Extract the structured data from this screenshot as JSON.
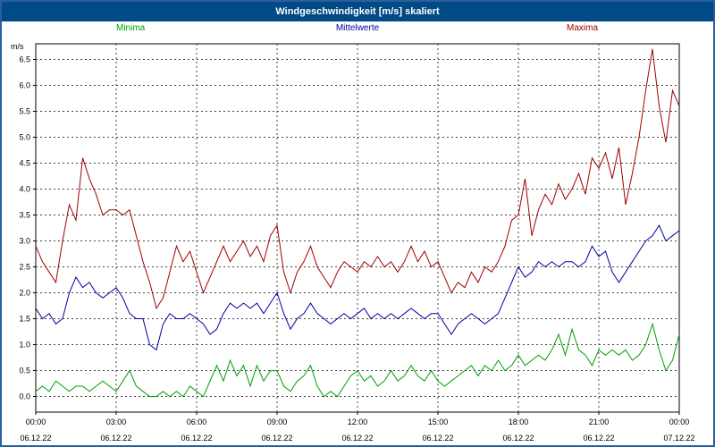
{
  "window": {
    "title": "Windgeschwindigkeit [m/s] skaliert"
  },
  "chart_data": {
    "type": "line",
    "title": "Windgeschwindigkeit [m/s] skaliert",
    "ylabel": "m/s",
    "ylim": [
      0,
      6.5
    ],
    "grid": "dashed",
    "legend_position": "top",
    "x_tick_labels": [
      "00:00",
      "03:00",
      "06:00",
      "09:00",
      "12:00",
      "15:00",
      "18:00",
      "21:00",
      "00:00"
    ],
    "x_date_labels": [
      "06.12.22",
      "06.12.22",
      "06.12.22",
      "06.12.22",
      "06.12.22",
      "06.12.22",
      "06.12.22",
      "06.12.22",
      "07.12.22"
    ],
    "y_tick_labels": [
      "0.0",
      "0.5",
      "1.0",
      "1.5",
      "2.0",
      "2.5",
      "3.0",
      "3.5",
      "4.0",
      "4.5",
      "5.0",
      "5.5",
      "6.0",
      "6.5"
    ],
    "points_per_hour": 4,
    "series": [
      {
        "name": "Minima",
        "color": "#00a000",
        "values": [
          0.1,
          0.2,
          0.1,
          0.3,
          0.2,
          0.1,
          0.2,
          0.2,
          0.1,
          0.2,
          0.3,
          0.2,
          0.1,
          0.3,
          0.5,
          0.2,
          0.1,
          0.0,
          0.0,
          0.1,
          0.0,
          0.1,
          0.0,
          0.2,
          0.1,
          0.0,
          0.3,
          0.6,
          0.3,
          0.7,
          0.4,
          0.6,
          0.2,
          0.6,
          0.3,
          0.5,
          0.5,
          0.2,
          0.1,
          0.3,
          0.4,
          0.6,
          0.2,
          0.0,
          0.1,
          0.0,
          0.2,
          0.4,
          0.5,
          0.3,
          0.4,
          0.2,
          0.3,
          0.5,
          0.3,
          0.4,
          0.6,
          0.4,
          0.3,
          0.5,
          0.3,
          0.2,
          0.3,
          0.4,
          0.5,
          0.6,
          0.4,
          0.6,
          0.5,
          0.7,
          0.5,
          0.6,
          0.8,
          0.6,
          0.7,
          0.8,
          0.7,
          0.9,
          1.2,
          0.8,
          1.3,
          0.9,
          0.8,
          0.6,
          0.9,
          0.8,
          0.9,
          0.8,
          0.9,
          0.7,
          0.8,
          1.0,
          1.4,
          0.9,
          0.5,
          0.7,
          1.2
        ]
      },
      {
        "name": "Mittelwerte",
        "color": "#0000a0",
        "values": [
          1.7,
          1.5,
          1.6,
          1.4,
          1.5,
          2.0,
          2.3,
          2.1,
          2.2,
          2.0,
          1.9,
          2.0,
          2.1,
          1.9,
          1.6,
          1.5,
          1.5,
          1.0,
          0.9,
          1.4,
          1.6,
          1.5,
          1.5,
          1.6,
          1.5,
          1.4,
          1.2,
          1.3,
          1.6,
          1.8,
          1.7,
          1.8,
          1.7,
          1.8,
          1.6,
          1.8,
          2.0,
          1.6,
          1.3,
          1.5,
          1.6,
          1.8,
          1.6,
          1.5,
          1.4,
          1.5,
          1.6,
          1.5,
          1.6,
          1.7,
          1.5,
          1.6,
          1.5,
          1.6,
          1.5,
          1.6,
          1.7,
          1.6,
          1.5,
          1.6,
          1.6,
          1.4,
          1.2,
          1.4,
          1.5,
          1.6,
          1.5,
          1.4,
          1.5,
          1.6,
          1.9,
          2.2,
          2.5,
          2.3,
          2.4,
          2.6,
          2.5,
          2.6,
          2.5,
          2.6,
          2.6,
          2.5,
          2.6,
          2.9,
          2.7,
          2.8,
          2.4,
          2.2,
          2.4,
          2.6,
          2.8,
          3.0,
          3.1,
          3.3,
          3.0,
          3.1,
          3.2
        ]
      },
      {
        "name": "Maxima",
        "color": "#a00000",
        "values": [
          2.9,
          2.6,
          2.4,
          2.2,
          3.0,
          3.7,
          3.4,
          4.6,
          4.2,
          3.9,
          3.5,
          3.6,
          3.6,
          3.5,
          3.6,
          3.1,
          2.6,
          2.2,
          1.7,
          1.9,
          2.4,
          2.9,
          2.6,
          2.8,
          2.4,
          2.0,
          2.3,
          2.6,
          2.9,
          2.6,
          2.8,
          3.0,
          2.7,
          2.9,
          2.6,
          3.1,
          3.3,
          2.4,
          2.0,
          2.4,
          2.6,
          2.9,
          2.5,
          2.3,
          2.1,
          2.4,
          2.6,
          2.5,
          2.4,
          2.6,
          2.5,
          2.7,
          2.5,
          2.6,
          2.4,
          2.6,
          2.9,
          2.6,
          2.8,
          2.5,
          2.6,
          2.3,
          2.0,
          2.2,
          2.1,
          2.4,
          2.2,
          2.5,
          2.4,
          2.6,
          2.9,
          3.4,
          3.5,
          4.2,
          3.1,
          3.6,
          3.9,
          3.7,
          4.1,
          3.8,
          4.0,
          4.3,
          3.9,
          4.6,
          4.4,
          4.7,
          4.2,
          4.8,
          3.7,
          4.3,
          5.0,
          5.9,
          6.7,
          5.6,
          4.9,
          5.9,
          5.6
        ]
      }
    ]
  }
}
